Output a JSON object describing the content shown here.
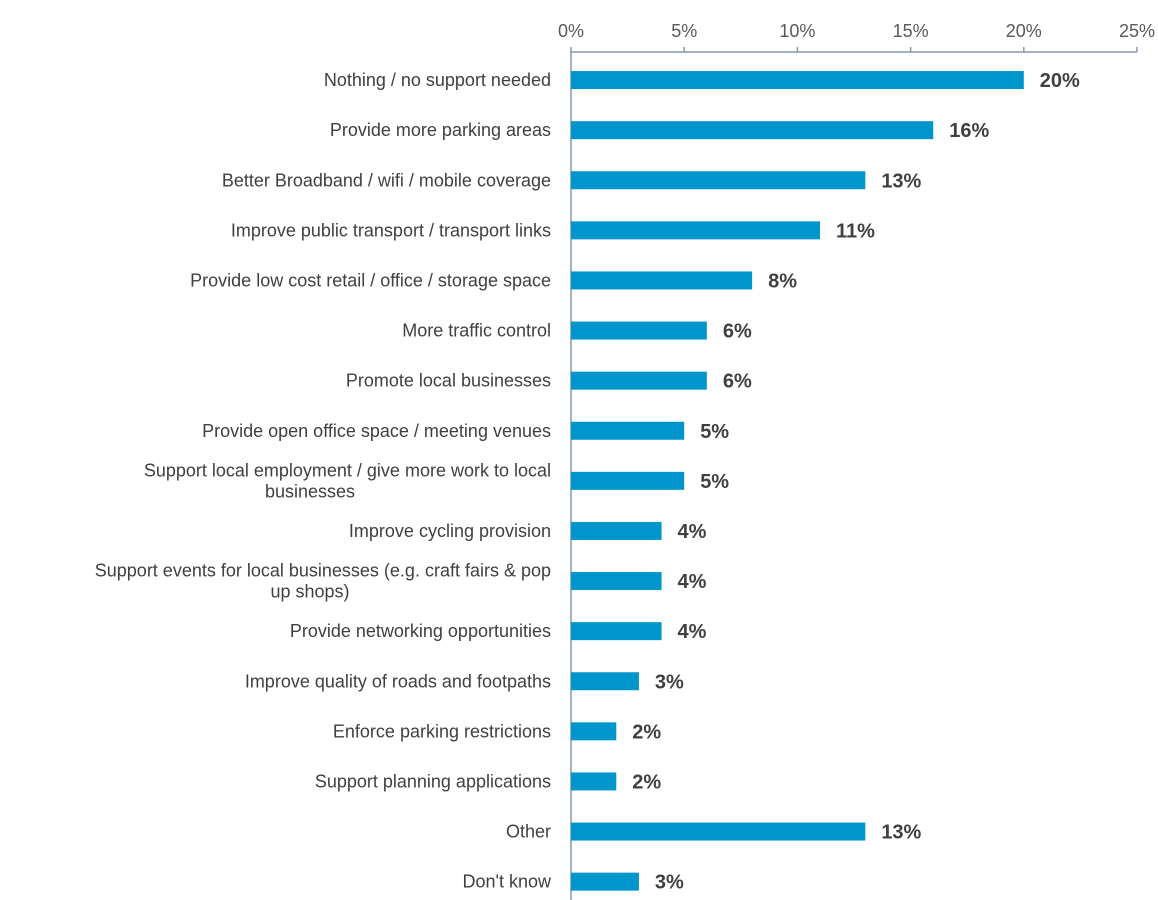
{
  "chart_data": {
    "type": "bar",
    "orientation": "horizontal",
    "title": "",
    "xlabel": "",
    "ylabel": "",
    "xlim": [
      0,
      25
    ],
    "x_ticks": [
      "0%",
      "5%",
      "10%",
      "15%",
      "20%",
      "25%"
    ],
    "x_axis_position": "top",
    "grid": false,
    "bar_color": "#0096CC",
    "categories": [
      "Nothing / no support needed",
      "Provide more parking areas",
      "Better Broadband / wifi / mobile coverage",
      "Improve public transport / transport links",
      "Provide low cost retail / office / storage space",
      "More traffic control",
      "Promote local businesses",
      "Provide open office space / meeting venues",
      "Support local employment / give more work to local businesses",
      "Improve cycling provision",
      "Support events for local businesses (e.g. craft fairs & pop up shops)",
      "Provide networking opportunities",
      "Improve quality of roads and footpaths",
      "Enforce parking restrictions",
      "Support planning applications",
      "Other",
      "Don't know"
    ],
    "category_lines": [
      [
        "Nothing / no support needed"
      ],
      [
        "Provide more parking areas"
      ],
      [
        "Better Broadband / wifi / mobile coverage"
      ],
      [
        "Improve public transport / transport links"
      ],
      [
        "Provide low cost retail / office / storage space"
      ],
      [
        "More traffic control"
      ],
      [
        "Promote local businesses"
      ],
      [
        "Provide open office space / meeting venues"
      ],
      [
        "Support local employment / give more work to local",
        "businesses"
      ],
      [
        "Improve cycling provision"
      ],
      [
        "Support events for local businesses (e.g. craft fairs & pop",
        "up shops)"
      ],
      [
        "Provide networking opportunities"
      ],
      [
        "Improve quality of roads and footpaths"
      ],
      [
        "Enforce parking restrictions"
      ],
      [
        "Support planning applications"
      ],
      [
        "Other"
      ],
      [
        "Don't know"
      ]
    ],
    "values": [
      20,
      16,
      13,
      11,
      8,
      6,
      6,
      5,
      5,
      4,
      4,
      4,
      3,
      2,
      2,
      13,
      3
    ],
    "value_labels": [
      "20%",
      "16%",
      "13%",
      "11%",
      "8%",
      "6%",
      "6%",
      "5%",
      "5%",
      "4%",
      "4%",
      "4%",
      "3%",
      "2%",
      "2%",
      "13%",
      "3%"
    ]
  }
}
